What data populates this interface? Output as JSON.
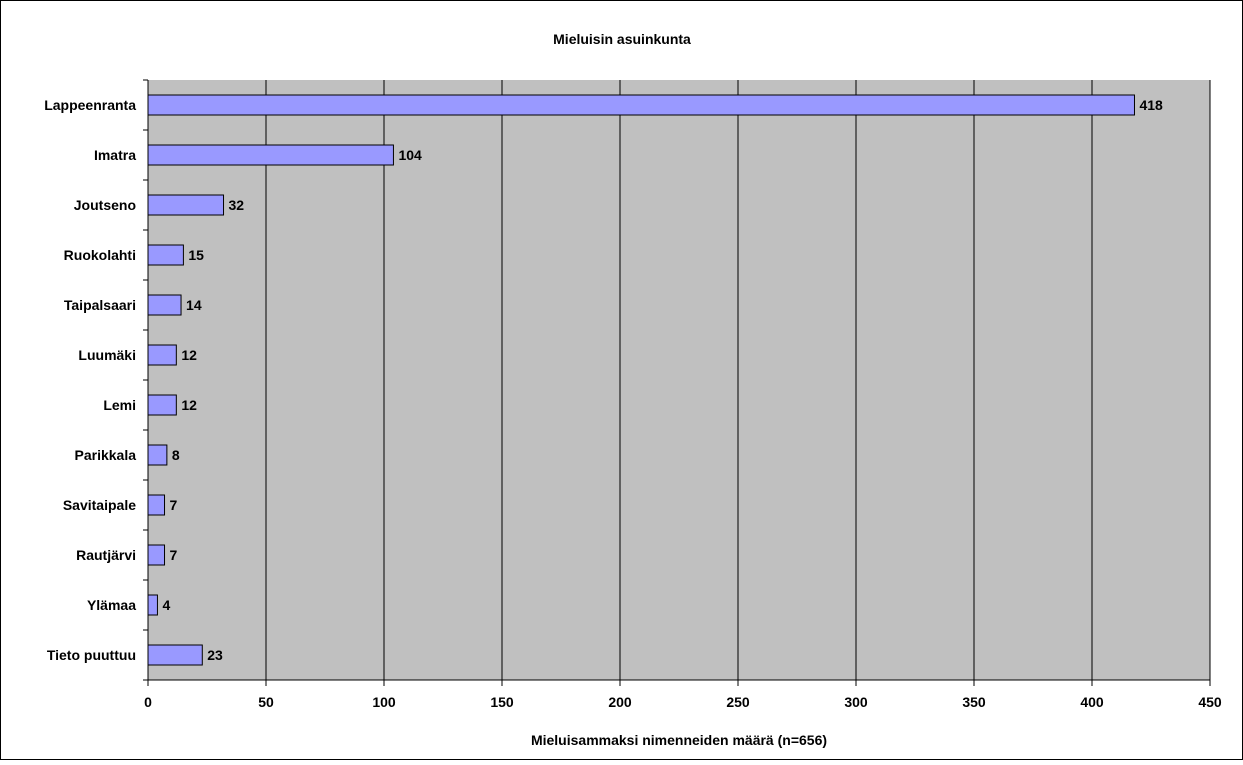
{
  "chart_data": {
    "type": "bar",
    "orientation": "horizontal",
    "title": "Mieluisin asuinkunta",
    "xlabel": "Mieluisammaksi nimenneiden määrä (n=656)",
    "ylabel": "",
    "categories": [
      "Lappeenranta",
      "Imatra",
      "Joutseno",
      "Ruokolahti",
      "Taipalsaari",
      "Luumäki",
      "Lemi",
      "Parikkala",
      "Savitaipale",
      "Rautjärvi",
      "Ylämaa",
      "Tieto puuttuu"
    ],
    "values": [
      418,
      104,
      32,
      15,
      14,
      12,
      12,
      8,
      7,
      7,
      4,
      23
    ],
    "xlim": [
      0,
      450
    ],
    "xticks": [
      0,
      50,
      100,
      150,
      200,
      250,
      300,
      350,
      400,
      450
    ],
    "grid": true,
    "legend": "none",
    "colors": {
      "bar_fill": "#9999ff",
      "bar_stroke": "#000000",
      "plot_background": "#c0c0c0",
      "gridline": "#000000"
    }
  }
}
